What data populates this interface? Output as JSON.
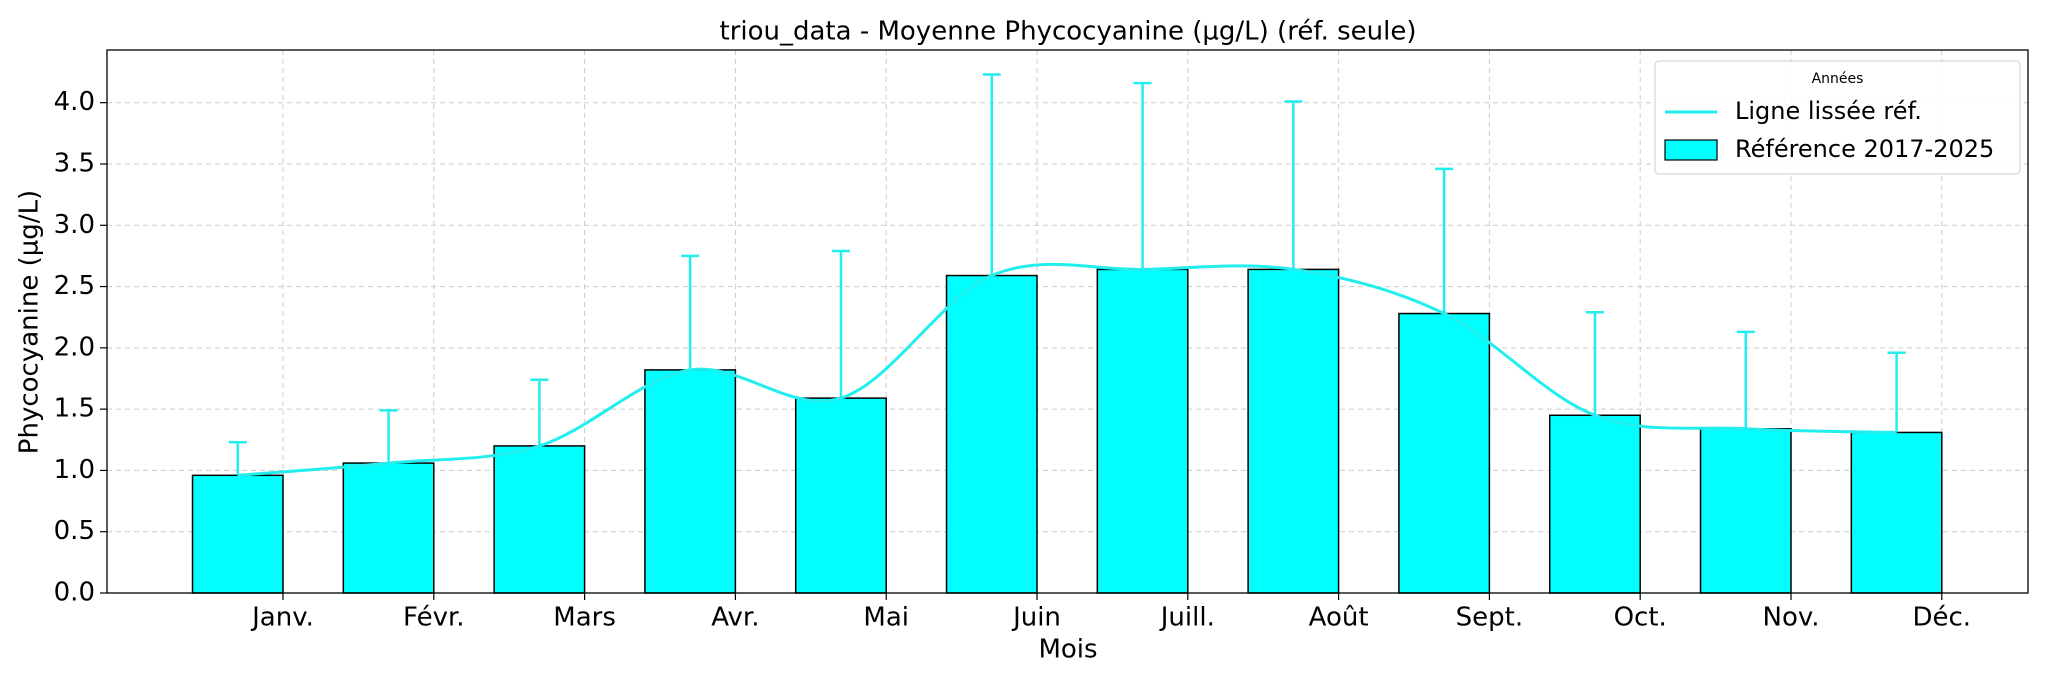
{
  "chart_data": {
    "type": "bar",
    "title": "triou_data - Moyenne Phycocyanine (µg/L) (réf. seule)",
    "x_label": "Mois",
    "y_label": "Phycocyanine (µg/L)",
    "categories": [
      "Janv.",
      "Févr.",
      "Mars",
      "Avr.",
      "Mai",
      "Juin",
      "Juill.",
      "Août",
      "Sept.",
      "Oct.",
      "Nov.",
      "Déc."
    ],
    "series": [
      {
        "name": "Référence 2017-2025",
        "color": "#00ffff",
        "values": [
          0.96,
          1.06,
          1.2,
          1.82,
          1.59,
          2.59,
          2.64,
          2.64,
          2.28,
          1.45,
          1.34,
          1.31
        ],
        "errors": [
          0.27,
          0.43,
          0.54,
          0.93,
          1.2,
          1.64,
          1.52,
          1.37,
          1.18,
          0.84,
          0.79,
          0.65
        ]
      },
      {
        "name": "Ligne lissée réf.",
        "color": "#22eeee",
        "type": "line",
        "values": [
          0.96,
          1.06,
          1.2,
          1.82,
          1.59,
          2.59,
          2.64,
          2.64,
          2.28,
          1.45,
          1.34,
          1.31
        ]
      }
    ],
    "legend_title": "Années",
    "legend": "upper right",
    "ylim": [
      0,
      4.43
    ],
    "yticks": [
      {
        "value": 0,
        "label": "0.0"
      },
      0.5,
      {
        "value": 1,
        "label": "1.0"
      },
      1.5,
      {
        "value": 2,
        "label": "2.0"
      },
      2.5,
      {
        "value": 3,
        "label": "3.0"
      },
      3.5,
      {
        "value": 4,
        "label": "4.0"
      }
    ],
    "grid": true
  }
}
